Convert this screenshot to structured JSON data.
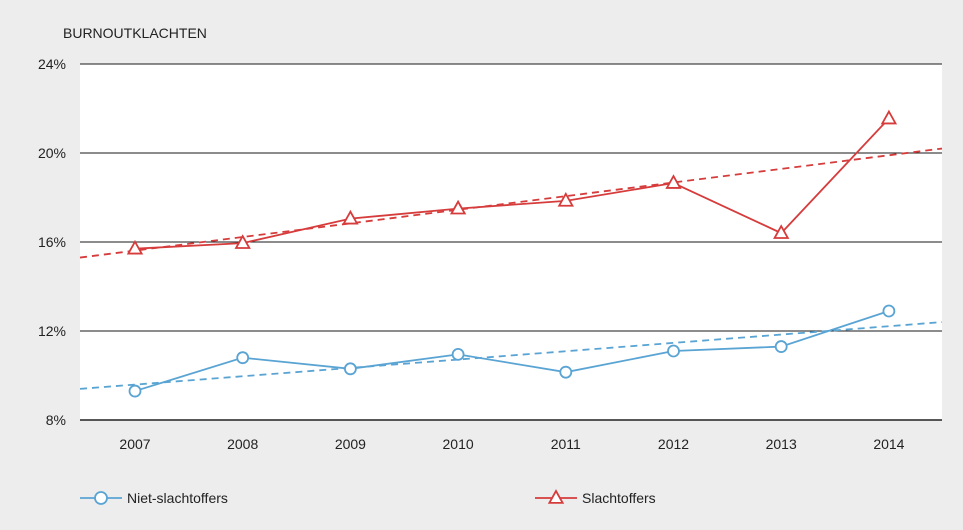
{
  "chart_data": {
    "type": "line",
    "ylabel": "BURNOUTKLACHTEN",
    "categories": [
      "2007",
      "2008",
      "2009",
      "2010",
      "2011",
      "2012",
      "2013",
      "2014"
    ],
    "ylim": [
      8,
      24
    ],
    "yticks": [
      8,
      12,
      16,
      20,
      24
    ],
    "ytick_labels": [
      "8%",
      "12%",
      "16%",
      "20%",
      "24%"
    ],
    "grid": "horizontal",
    "legend_position": "bottom",
    "series": [
      {
        "name": "Niet-slachtoffers",
        "values": [
          9.3,
          10.8,
          10.3,
          10.95,
          10.15,
          11.1,
          11.3,
          12.9
        ],
        "color": "#5aa4d4",
        "marker": "circle",
        "trend": [
          9.4,
          12.4
        ]
      },
      {
        "name": "Slachtoffers",
        "values": [
          15.7,
          15.95,
          17.05,
          17.5,
          17.85,
          18.65,
          16.4,
          21.55
        ],
        "color": "#d63c3c",
        "marker": "triangle",
        "trend": [
          15.3,
          20.2
        ]
      }
    ]
  }
}
